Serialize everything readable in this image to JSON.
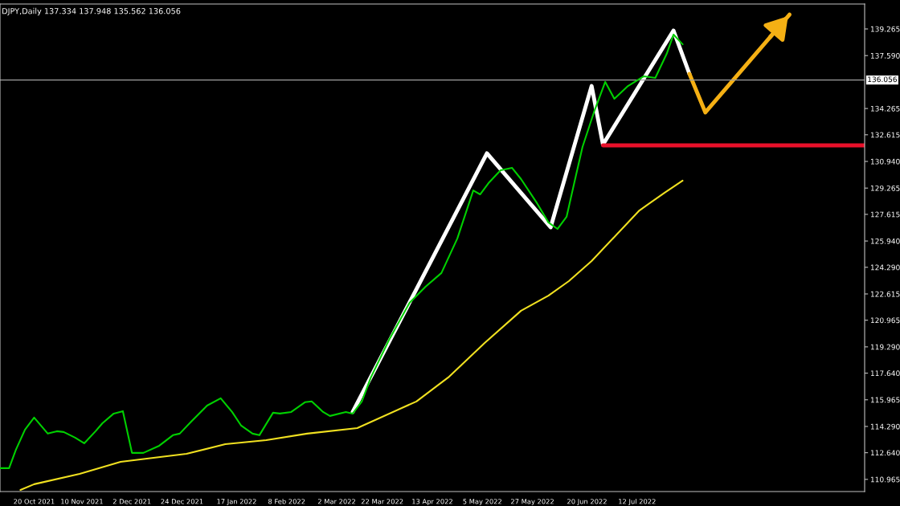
{
  "chart_data": {
    "type": "line",
    "title": "DJPY,Daily 137.334 137.948 135.562 136.056",
    "xlim": [
      "2021-10-05",
      "2022-10-20"
    ],
    "ylim": [
      110.2,
      140.83
    ],
    "xticks": [
      {
        "value": "2021-10-20",
        "label": "20 Oct 2021"
      },
      {
        "value": "2021-11-10",
        "label": "10 Nov 2021"
      },
      {
        "value": "2021-12-02",
        "label": "2 Dec 2021"
      },
      {
        "value": "2021-12-24",
        "label": "24 Dec 2021"
      },
      {
        "value": "2022-01-17",
        "label": "17 Jan 2022"
      },
      {
        "value": "2022-02-08",
        "label": "8 Feb 2022"
      },
      {
        "value": "2022-03-02",
        "label": "2 Mar 2022"
      },
      {
        "value": "2022-03-22",
        "label": "22 Mar 2022"
      },
      {
        "value": "2022-04-13",
        "label": "13 Apr 2022"
      },
      {
        "value": "2022-05-05",
        "label": "5 May 2022"
      },
      {
        "value": "2022-05-27",
        "label": "27 May 2022"
      },
      {
        "value": "2022-06-20",
        "label": "20 Jun 2022"
      },
      {
        "value": "2022-07-12",
        "label": "12 Jul 2022"
      }
    ],
    "yticks": [
      {
        "value": 139.265,
        "label": "139.265"
      },
      {
        "value": 137.59,
        "label": "137.590"
      },
      {
        "value": 134.265,
        "label": "134.265"
      },
      {
        "value": 132.615,
        "label": "132.615"
      },
      {
        "value": 130.94,
        "label": "130.940"
      },
      {
        "value": 129.265,
        "label": "129.265"
      },
      {
        "value": 127.615,
        "label": "127.615"
      },
      {
        "value": 125.94,
        "label": "125.940"
      },
      {
        "value": 124.29,
        "label": "124.290"
      },
      {
        "value": 122.615,
        "label": "122.615"
      },
      {
        "value": 120.965,
        "label": "120.965"
      },
      {
        "value": 119.29,
        "label": "119.290"
      },
      {
        "value": 117.64,
        "label": "117.640"
      },
      {
        "value": 115.965,
        "label": "115.965"
      },
      {
        "value": 114.29,
        "label": "114.290"
      },
      {
        "value": 112.64,
        "label": "112.640"
      },
      {
        "value": 110.965,
        "label": "110.965"
      }
    ],
    "ref_lines": [
      {
        "axis": "y",
        "value": 136.056,
        "label": "136.056",
        "color": "#a0a0a0"
      }
    ],
    "grid": false,
    "legend": false,
    "marker": "none",
    "line_style": "solid",
    "series": [
      {
        "color": "#f0e020",
        "x": [
          "2021-10-14",
          "2021-10-20",
          "2021-11-09",
          "2021-11-27",
          "2021-12-26",
          "2022-01-12",
          "2022-01-30",
          "2022-02-17",
          "2022-03-11",
          "2022-04-06",
          "2022-04-20",
          "2022-05-06",
          "2022-05-22",
          "2022-06-03",
          "2022-06-12",
          "2022-06-22",
          "2022-07-13",
          "2022-07-24",
          "2022-08-01"
        ],
        "values": [
          110.3,
          110.66,
          111.31,
          112.07,
          112.57,
          113.18,
          113.43,
          113.84,
          114.19,
          115.86,
          117.37,
          119.54,
          121.56,
          122.51,
          123.42,
          124.68,
          127.86,
          128.97,
          129.73
        ]
      },
      {
        "color": "#00d000",
        "x": [
          "2021-10-05",
          "2021-10-09",
          "2021-10-12",
          "2021-10-16",
          "2021-10-20",
          "2021-10-26",
          "2021-10-30",
          "2021-11-02",
          "2021-11-07",
          "2021-11-11",
          "2021-11-16",
          "2021-11-19",
          "2021-11-24",
          "2021-11-28",
          "2021-12-02",
          "2021-12-07",
          "2021-12-14",
          "2021-12-20",
          "2021-12-23",
          "2021-12-28",
          "2022-01-04",
          "2022-01-10",
          "2022-01-15",
          "2022-01-19",
          "2022-01-24",
          "2022-01-27",
          "2022-02-02",
          "2022-02-05",
          "2022-02-10",
          "2022-02-16",
          "2022-02-19",
          "2022-02-24",
          "2022-02-27",
          "2022-03-06",
          "2022-03-09",
          "2022-03-13",
          "2022-03-17",
          "2022-03-25",
          "2022-04-03",
          "2022-04-10",
          "2022-04-17",
          "2022-04-24",
          "2022-05-01",
          "2022-05-04",
          "2022-05-08",
          "2022-05-13",
          "2022-05-18",
          "2022-05-22",
          "2022-05-29",
          "2022-06-03",
          "2022-06-07",
          "2022-06-11",
          "2022-06-15",
          "2022-06-18",
          "2022-06-23",
          "2022-06-28",
          "2022-07-02",
          "2022-07-08",
          "2022-07-15",
          "2022-07-20",
          "2022-07-25",
          "2022-07-28",
          "2022-08-01"
        ],
        "values": [
          111.67,
          111.67,
          112.83,
          114.09,
          114.85,
          113.84,
          113.99,
          113.94,
          113.59,
          113.23,
          113.99,
          114.49,
          115.1,
          115.25,
          112.63,
          112.63,
          113.08,
          113.74,
          113.84,
          114.59,
          115.6,
          116.06,
          115.2,
          114.34,
          113.84,
          113.74,
          115.15,
          115.1,
          115.2,
          115.81,
          115.86,
          115.2,
          114.95,
          115.2,
          115.1,
          115.86,
          117.37,
          119.74,
          122.06,
          123.07,
          123.93,
          126.1,
          129.12,
          128.87,
          129.63,
          130.38,
          130.54,
          129.83,
          128.32,
          127.11,
          126.7,
          127.46,
          129.98,
          131.85,
          134.02,
          135.94,
          134.88,
          135.68,
          136.29,
          136.19,
          137.7,
          138.91,
          138.3
        ]
      },
      {
        "color": "#ffffff",
        "x": [
          "2022-03-09",
          "2022-05-07",
          "2022-06-04",
          "2022-06-22",
          "2022-06-27",
          "2022-07-28",
          "2022-08-04"
        ],
        "values": [
          115.2,
          131.45,
          126.8,
          135.68,
          132.0,
          139.16,
          136.44
        ]
      },
      {
        "color": "#f5b014",
        "x": [
          "2022-08-04",
          "2022-08-11",
          "2022-09-17"
        ],
        "values": [
          136.44,
          134.02,
          140.17
        ]
      },
      {
        "color": "#e8102a",
        "x": [
          "2022-06-27",
          "2022-10-20"
        ],
        "values": [
          131.95,
          131.95
        ]
      }
    ]
  }
}
